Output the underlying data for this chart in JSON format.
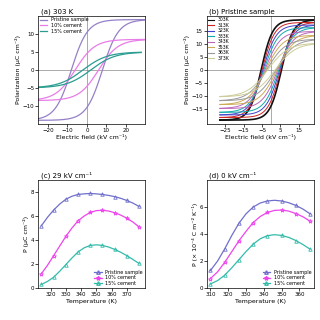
{
  "panel_a_title": "(a) 303 K",
  "panel_b_title": "(b) Pristine sample",
  "panel_c_title": "(c) 29 kV cm⁻¹",
  "panel_d_title": "(d) 0 kV cm⁻¹",
  "panel_a_xlabel": "Electric field (kV cm⁻¹)",
  "panel_b_xlabel": "Electric field (kV cm⁻¹)",
  "panel_c_xlabel": "Temperature (K)",
  "panel_d_xlabel": "Temperature (K)",
  "panel_a_ylabel": "Polarization (μC cm⁻²)",
  "panel_b_ylabel": "Polarization (μC cm⁻²)",
  "panel_c_ylabel": "P (μC cm⁻²)",
  "panel_d_ylabel": "P (× 10⁻⁴ C m⁻² K⁻¹)",
  "bg": "#ffffff",
  "panel_bg": "#ffffff",
  "pristine_color_a": "#9580c8",
  "cement10_color_a": "#e87de8",
  "cement15_color_a": "#2a9d90",
  "temps_b": [
    303,
    313,
    323,
    333,
    343,
    353,
    363,
    373
  ],
  "colors_b": [
    "#111111",
    "#cc2222",
    "#4040cc",
    "#11aaaa",
    "#bb66bb",
    "#ccaa55",
    "#999999",
    "#cccc99"
  ],
  "pristine_color_c": "#7070cc",
  "cement10_color_c": "#ee44ee",
  "cement15_color_c": "#33bbaa",
  "pristine_color_d": "#7070cc",
  "cement10_color_d": "#ee44ee",
  "cement15_color_d": "#33bbaa",
  "grid_color": "#cccccc",
  "axis_line_color": "#888888"
}
